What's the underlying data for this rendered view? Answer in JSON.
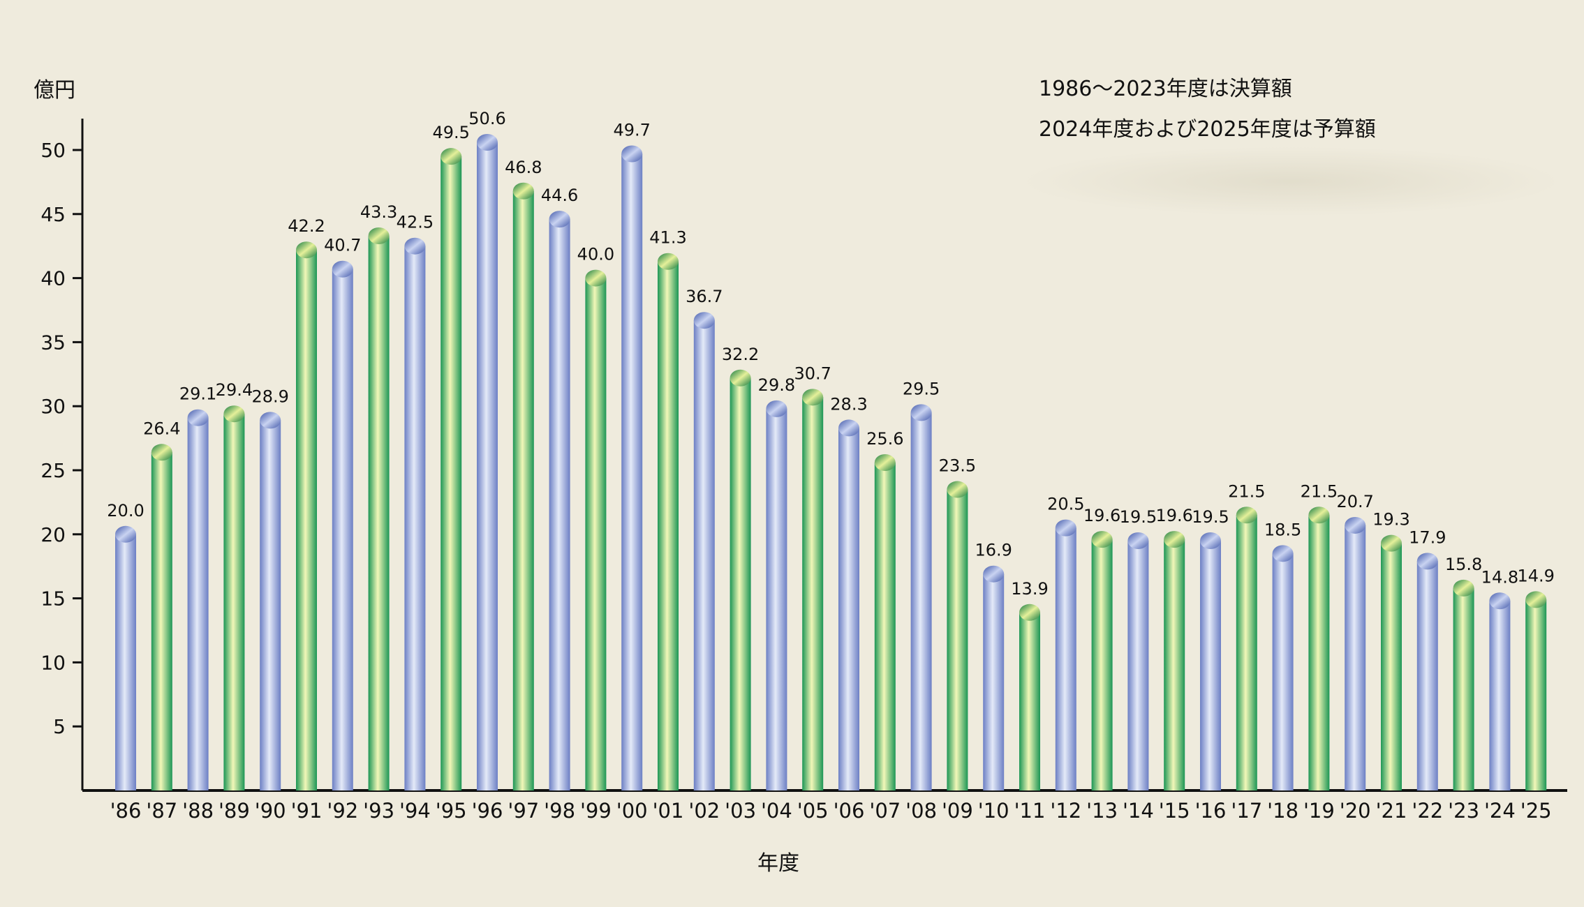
{
  "chart_data": {
    "type": "bar",
    "title": "",
    "ylabel": "億円",
    "xlabel": "年度",
    "notes": [
      "1986〜2023年度は決算額",
      "2024年度および2025年度は予算額"
    ],
    "ylim": [
      0,
      52
    ],
    "yticks": [
      5,
      10,
      15,
      20,
      25,
      30,
      35,
      40,
      45,
      50
    ],
    "grid": false,
    "legend": "none",
    "categories": [
      "'86",
      "'87",
      "'88",
      "'89",
      "'90",
      "'91",
      "'92",
      "'93",
      "'94",
      "'95",
      "'96",
      "'97",
      "'98",
      "'99",
      "'00",
      "'01",
      "'02",
      "'03",
      "'04",
      "'05",
      "'06",
      "'07",
      "'08",
      "'09",
      "'10",
      "'11",
      "'12",
      "'13",
      "'14",
      "'15",
      "'16",
      "'17",
      "'18",
      "'19",
      "'20",
      "'21",
      "'22",
      "'23",
      "'24",
      "'25"
    ],
    "values": [
      20.0,
      26.4,
      29.1,
      29.4,
      28.9,
      42.2,
      40.7,
      43.3,
      42.5,
      49.5,
      50.6,
      46.8,
      44.6,
      40.0,
      49.7,
      41.3,
      36.7,
      32.2,
      29.8,
      30.7,
      28.3,
      25.6,
      29.5,
      23.5,
      16.9,
      13.9,
      20.5,
      19.6,
      19.5,
      19.6,
      19.5,
      21.5,
      18.5,
      21.5,
      20.7,
      19.3,
      17.9,
      15.8,
      14.8,
      14.9
    ],
    "labels": [
      "20.0",
      "26.4",
      "29.1",
      "29.4",
      "28.9",
      "42.2",
      "40.7",
      "43.3",
      "42.5",
      "49.5",
      "50.6",
      "46.8",
      "44.6",
      "40.0",
      "49.7",
      "41.3",
      "36.7",
      "32.2",
      "29.8",
      "30.7",
      "28.3",
      "25.6",
      "29.5",
      "23.5",
      "16.9",
      "13.9",
      "20.5",
      "19.6",
      "19.5",
      "19.6",
      "19.5",
      "21.5",
      "18.5",
      "21.5",
      "20.7",
      "19.3",
      "17.9",
      "15.8",
      "14.8",
      "14.9"
    ],
    "bar_colors": [
      "blue",
      "green",
      "blue",
      "green",
      "blue",
      "green",
      "blue",
      "green",
      "blue",
      "green",
      "blue",
      "green",
      "blue",
      "green",
      "blue",
      "green",
      "blue",
      "green",
      "blue",
      "green",
      "blue",
      "green",
      "blue",
      "green",
      "blue",
      "green",
      "blue",
      "green",
      "blue",
      "green",
      "blue",
      "green",
      "blue",
      "green",
      "blue",
      "green",
      "blue",
      "green",
      "blue",
      "green"
    ]
  },
  "colors": {
    "background": "#efebdd",
    "blue_dark": "#6f84c8",
    "blue_light": "#dfe6f7",
    "green_dark": "#1f9a58",
    "green_light": "#f1f6b4",
    "axis": "#111111"
  }
}
